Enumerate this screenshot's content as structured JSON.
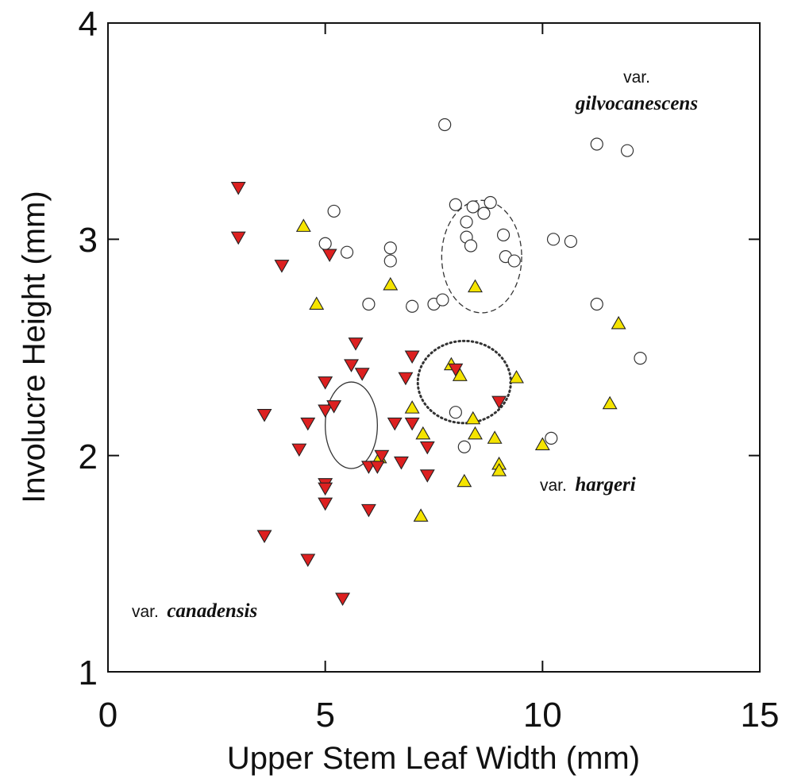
{
  "chart_data": {
    "type": "scatter",
    "title": "",
    "xlabel": "Upper Stem Leaf Width (mm)",
    "ylabel": "Involucre Height  (mm)",
    "xlim": [
      0,
      15
    ],
    "ylim": [
      1,
      4
    ],
    "x_ticks": [
      "0",
      "5",
      "10",
      "15"
    ],
    "y_ticks": [
      "1",
      "2",
      "3",
      "4"
    ],
    "grid": false,
    "annotations": [
      {
        "prefix": "var.",
        "name": "gilvocanescens"
      },
      {
        "prefix": "var.",
        "name": "hargeri"
      },
      {
        "prefix": "var.",
        "name": "canadensis"
      }
    ],
    "series": [
      {
        "marker": "circle-open",
        "color": "#ffffff",
        "points": [
          [
            7.75,
            3.53
          ],
          [
            11.25,
            3.44
          ],
          [
            11.95,
            3.41
          ],
          [
            8.0,
            3.16
          ],
          [
            8.4,
            3.15
          ],
          [
            8.8,
            3.17
          ],
          [
            8.65,
            3.12
          ],
          [
            8.25,
            3.08
          ],
          [
            8.25,
            3.01
          ],
          [
            8.35,
            2.97
          ],
          [
            9.1,
            3.02
          ],
          [
            10.25,
            3.0
          ],
          [
            10.65,
            2.99
          ],
          [
            9.15,
            2.92
          ],
          [
            9.35,
            2.9
          ],
          [
            5.2,
            3.13
          ],
          [
            5.0,
            2.98
          ],
          [
            5.5,
            2.94
          ],
          [
            6.5,
            2.96
          ],
          [
            6.5,
            2.9
          ],
          [
            6.0,
            2.7
          ],
          [
            7.0,
            2.69
          ],
          [
            7.5,
            2.7
          ],
          [
            7.7,
            2.72
          ],
          [
            11.25,
            2.7
          ],
          [
            12.25,
            2.45
          ],
          [
            8.0,
            2.2
          ],
          [
            8.2,
            2.04
          ],
          [
            10.2,
            2.08
          ]
        ]
      },
      {
        "marker": "triangle-up",
        "color": "#f5e400",
        "points": [
          [
            4.5,
            3.06
          ],
          [
            4.8,
            2.7
          ],
          [
            6.5,
            2.79
          ],
          [
            8.45,
            2.78
          ],
          [
            11.75,
            2.61
          ],
          [
            7.9,
            2.42
          ],
          [
            8.1,
            2.37
          ],
          [
            9.4,
            2.36
          ],
          [
            7.0,
            2.22
          ],
          [
            8.4,
            2.17
          ],
          [
            7.25,
            2.1
          ],
          [
            8.45,
            2.1
          ],
          [
            8.9,
            2.08
          ],
          [
            10.0,
            2.05
          ],
          [
            11.55,
            2.24
          ],
          [
            6.25,
            1.99
          ],
          [
            9.0,
            1.96
          ],
          [
            9.0,
            1.93
          ],
          [
            8.2,
            1.88
          ],
          [
            7.2,
            1.72
          ]
        ]
      },
      {
        "marker": "triangle-down",
        "color": "#dd2020",
        "points": [
          [
            3.0,
            3.24
          ],
          [
            3.0,
            3.01
          ],
          [
            4.0,
            2.88
          ],
          [
            5.1,
            2.93
          ],
          [
            5.7,
            2.52
          ],
          [
            5.6,
            2.42
          ],
          [
            5.85,
            2.38
          ],
          [
            7.0,
            2.46
          ],
          [
            6.85,
            2.36
          ],
          [
            8.0,
            2.4
          ],
          [
            9.0,
            2.25
          ],
          [
            5.0,
            2.34
          ],
          [
            5.0,
            2.21
          ],
          [
            5.2,
            2.23
          ],
          [
            3.6,
            2.19
          ],
          [
            4.6,
            2.15
          ],
          [
            7.0,
            2.15
          ],
          [
            6.6,
            2.15
          ],
          [
            7.35,
            2.04
          ],
          [
            4.4,
            2.03
          ],
          [
            6.3,
            2.0
          ],
          [
            6.0,
            1.95
          ],
          [
            6.2,
            1.95
          ],
          [
            6.75,
            1.97
          ],
          [
            7.35,
            1.91
          ],
          [
            5.0,
            1.87
          ],
          [
            5.0,
            1.85
          ],
          [
            5.0,
            1.78
          ],
          [
            6.0,
            1.75
          ],
          [
            3.6,
            1.63
          ],
          [
            4.6,
            1.52
          ],
          [
            5.4,
            1.34
          ]
        ]
      }
    ],
    "ellipses": [
      {
        "cx": 8.6,
        "cy": 2.92,
        "rx": 0.92,
        "ry": 0.26,
        "style": "dashed"
      },
      {
        "cx": 8.2,
        "cy": 2.34,
        "rx": 1.07,
        "ry": 0.19,
        "style": "dotted"
      },
      {
        "cx": 5.6,
        "cy": 2.14,
        "rx": 0.6,
        "ry": 0.2,
        "style": "solid"
      }
    ]
  }
}
